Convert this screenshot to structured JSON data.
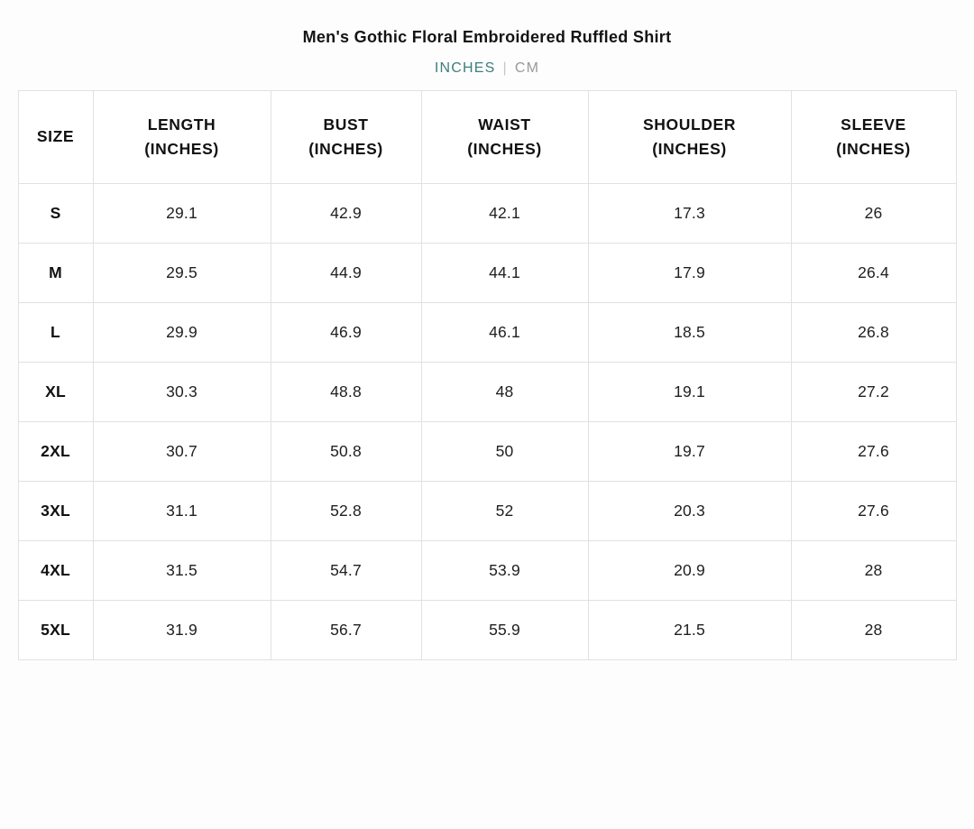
{
  "title": "Men's Gothic Floral Embroidered Ruffled Shirt",
  "unit_toggle": {
    "inches_label": "INCHES",
    "separator": "|",
    "cm_label": "CM",
    "selected_unit": "INCHES"
  },
  "colors": {
    "accent_teal": "#3E7D7E",
    "inactive_gray": "#9a9a9a",
    "table_border": "#e1e1e1",
    "text_dark": "#111111"
  },
  "chart_data": {
    "type": "table",
    "title": "Men's Gothic Floral Embroidered Ruffled Shirt",
    "unit": "INCHES",
    "columns": [
      {
        "label": "SIZE",
        "unit_line": ""
      },
      {
        "label": "LENGTH",
        "unit_line": "(INCHES)"
      },
      {
        "label": "BUST",
        "unit_line": "(INCHES)"
      },
      {
        "label": "WAIST",
        "unit_line": "(INCHES)"
      },
      {
        "label": "SHOULDER",
        "unit_line": "(INCHES)"
      },
      {
        "label": "SLEEVE",
        "unit_line": "(INCHES)"
      }
    ],
    "rows": [
      {
        "size": "S",
        "values": [
          "29.1",
          "42.9",
          "42.1",
          "17.3",
          "26"
        ]
      },
      {
        "size": "M",
        "values": [
          "29.5",
          "44.9",
          "44.1",
          "17.9",
          "26.4"
        ]
      },
      {
        "size": "L",
        "values": [
          "29.9",
          "46.9",
          "46.1",
          "18.5",
          "26.8"
        ]
      },
      {
        "size": "XL",
        "values": [
          "30.3",
          "48.8",
          "48",
          "19.1",
          "27.2"
        ]
      },
      {
        "size": "2XL",
        "values": [
          "30.7",
          "50.8",
          "50",
          "19.7",
          "27.6"
        ]
      },
      {
        "size": "3XL",
        "values": [
          "31.1",
          "52.8",
          "52",
          "20.3",
          "27.6"
        ]
      },
      {
        "size": "4XL",
        "values": [
          "31.5",
          "54.7",
          "53.9",
          "20.9",
          "28"
        ]
      },
      {
        "size": "5XL",
        "values": [
          "31.9",
          "56.7",
          "55.9",
          "21.5",
          "28"
        ]
      }
    ]
  }
}
